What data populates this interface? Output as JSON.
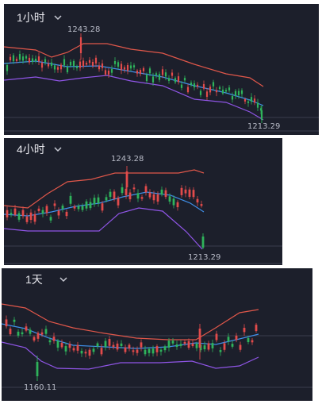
{
  "panels": [
    {
      "id": "1h",
      "period": "1小时",
      "high_label": "1243.28",
      "low_label": "1213.29"
    },
    {
      "id": "4h",
      "period": "4小时",
      "high_label": "1243.28",
      "low_label": "1213.29"
    },
    {
      "id": "1d",
      "period": "1天",
      "low_label": "1160.11"
    }
  ],
  "colors": {
    "background": "#1c1f2b",
    "upper_band": "#e0574a",
    "middle_band": "#3f8fe8",
    "lower_band": "#8f55e6",
    "candle_up": "#e24b4b",
    "candle_down": "#2fb35b",
    "text": "#e8e8ee"
  },
  "icons": {
    "period_dropdown": "chevron-down-icon"
  }
}
